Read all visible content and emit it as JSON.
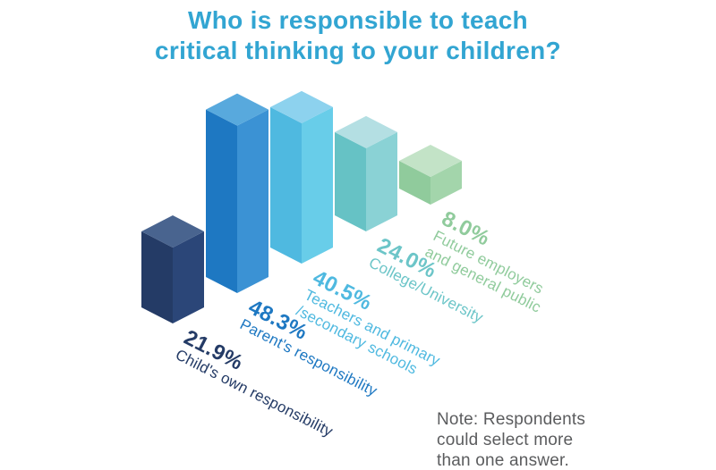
{
  "colors": {
    "background": "#ffffff",
    "title": "#32a5d2",
    "note": "#5b5c5e"
  },
  "chart_data": {
    "type": "bar",
    "variant": "isometric-3d",
    "title": "Who is responsible to teach critical thinking to your children?",
    "title_lines": [
      "Who is responsible to teach",
      "critical thinking to your children?"
    ],
    "unit": "%",
    "categories": [
      "Child's own responsibility",
      "Parent's responsibility",
      "Teachers and primary /secondary schools",
      "College/University",
      "Future employers and general public"
    ],
    "values": [
      21.9,
      48.3,
      40.5,
      24.0,
      8.0
    ],
    "bars": [
      {
        "value_label": "21.9%",
        "label_lines": [
          "Child's own responsibility"
        ],
        "label_color": "#243b66",
        "colors": {
          "left": "#243b66",
          "right": "#2b4678",
          "top": "#49648f"
        }
      },
      {
        "value_label": "48.3%",
        "label_lines": [
          "Parent's responsibility"
        ],
        "label_color": "#1e78c2",
        "colors": {
          "left": "#1e78c2",
          "right": "#3b92d4",
          "top": "#58a9dd"
        }
      },
      {
        "value_label": "40.5%",
        "label_lines": [
          "Teachers and primary",
          "/secondary schools"
        ],
        "label_color": "#4fb9e0",
        "colors": {
          "left": "#4fb9e0",
          "right": "#68cde9",
          "top": "#8dd2ee"
        }
      },
      {
        "value_label": "24.0%",
        "label_lines": [
          "College/University"
        ],
        "label_color": "#6cc5c8",
        "colors": {
          "left": "#66c2c5",
          "right": "#8ad2d5",
          "top": "#b4dfe3"
        }
      },
      {
        "value_label": "8.0%",
        "label_lines": [
          "Future employers",
          "and general public"
        ],
        "label_color": "#90cb9c",
        "colors": {
          "left": "#90cb9c",
          "right": "#a3d5ab",
          "top": "#c3e3c7"
        }
      }
    ],
    "note": "Note: Respondents could select more than one answer.",
    "note_lines": [
      "Note: Respondents",
      "could select more",
      "than one answer."
    ],
    "legend": "none",
    "grid": "off"
  }
}
